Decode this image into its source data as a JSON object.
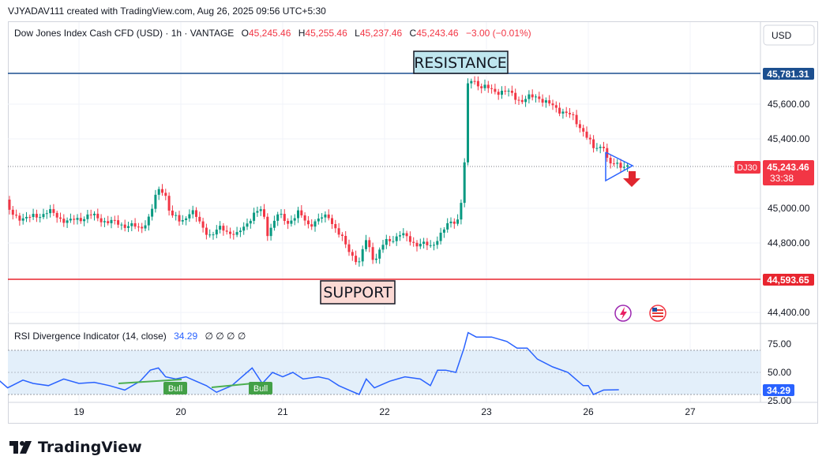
{
  "header": {
    "author_line": "VJYADAV111 created with TradingView.com, Aug 26, 2025 09:56 UTC+5:30"
  },
  "symbol_bar": {
    "name": "Dow Jones Index Cash CFD (USD) · 1h · VANTAGE",
    "o_label": "O",
    "o_value": "45,245.46",
    "h_label": "H",
    "h_value": "45,255.46",
    "l_label": "L",
    "l_value": "45,237.46",
    "c_label": "C",
    "c_value": "45,243.46",
    "change": "−3.00 (−0.01%)"
  },
  "currency_button": "USD",
  "annotations": {
    "resistance": "RESISTANCE",
    "support": "SUPPORT"
  },
  "price_tags": {
    "resistance": "45,781.31",
    "support": "44,593.65",
    "symbol": "DJ30",
    "last_price": "45,243.46",
    "countdown": "33:38"
  },
  "rsi": {
    "title": "RSI Divergence Indicator (14, close)",
    "value": "34.29",
    "extras": "∅ ∅ ∅ ∅",
    "bull_label": "Bull",
    "axis_ticks": [
      "75.00",
      "50.00",
      "25.00"
    ],
    "value_tag": "34.29"
  },
  "logo_text": "TradingView",
  "colors": {
    "up": "#089981",
    "down": "#f23645",
    "resistance": "#1c4f8f",
    "support": "#e8252f",
    "rsi_line": "#2962ff",
    "rsi_band": "#e3effa",
    "bull": "#4caf50",
    "label_green": "#43a047"
  },
  "chart_data": {
    "type": "candlestick",
    "title": "Dow Jones Index Cash CFD (USD) · 1h · VANTAGE",
    "x_ticks": [
      "19",
      "20",
      "21",
      "22",
      "23",
      "26",
      "27"
    ],
    "y_ticks": [
      "45,600.00",
      "45,400.00",
      "45,000.00",
      "44,800.00",
      "44,400.00"
    ],
    "y_range": [
      44320,
      45880
    ],
    "resistance": 45781.31,
    "support": 44593.65,
    "last_price": 45243.46,
    "close_path": [
      [
        18.2,
        45050
      ],
      [
        18.35,
        44960
      ],
      [
        18.5,
        44940
      ],
      [
        18.7,
        44980
      ],
      [
        18.9,
        44920
      ],
      [
        19.1,
        44960
      ],
      [
        19.3,
        44920
      ],
      [
        19.5,
        44900
      ],
      [
        19.6,
        44880
      ],
      [
        19.7,
        44960
      ],
      [
        19.75,
        45060
      ],
      [
        19.8,
        45120
      ],
      [
        19.85,
        45080
      ],
      [
        19.9,
        44960
      ],
      [
        20.0,
        44920
      ],
      [
        20.1,
        44990
      ],
      [
        20.2,
        44900
      ],
      [
        20.3,
        44840
      ],
      [
        20.4,
        44890
      ],
      [
        20.55,
        44840
      ],
      [
        20.7,
        44960
      ],
      [
        20.8,
        44990
      ],
      [
        20.85,
        44860
      ],
      [
        20.95,
        44960
      ],
      [
        21.05,
        44920
      ],
      [
        21.15,
        44970
      ],
      [
        21.25,
        44910
      ],
      [
        21.35,
        44930
      ],
      [
        21.45,
        44960
      ],
      [
        21.55,
        44850
      ],
      [
        21.65,
        44760
      ],
      [
        21.75,
        44680
      ],
      [
        21.82,
        44820
      ],
      [
        21.9,
        44700
      ],
      [
        22.0,
        44800
      ],
      [
        22.15,
        44850
      ],
      [
        22.3,
        44800
      ],
      [
        22.45,
        44780
      ],
      [
        22.55,
        44850
      ],
      [
        22.65,
        44920
      ],
      [
        22.72,
        44940
      ],
      [
        22.78,
        45130
      ],
      [
        22.8,
        45680
      ],
      [
        22.86,
        45750
      ],
      [
        22.95,
        45700
      ],
      [
        23.05,
        45680
      ],
      [
        23.2,
        45670
      ],
      [
        23.35,
        45620
      ],
      [
        23.5,
        45650
      ],
      [
        23.6,
        45600
      ],
      [
        23.75,
        45560
      ],
      [
        23.85,
        45520
      ],
      [
        23.95,
        45450
      ],
      [
        26.05,
        45340
      ],
      [
        26.15,
        45370
      ],
      [
        26.2,
        45245
      ],
      [
        26.3,
        45255
      ],
      [
        26.4,
        45243
      ]
    ],
    "rsi": {
      "y_range": [
        25,
        100
      ],
      "overbought": 70,
      "oversold": 30,
      "series": [
        [
          18.2,
          44
        ],
        [
          18.3,
          36
        ],
        [
          18.45,
          43
        ],
        [
          18.55,
          40
        ],
        [
          18.7,
          38
        ],
        [
          18.85,
          44
        ],
        [
          19.0,
          40
        ],
        [
          19.15,
          41
        ],
        [
          19.3,
          38
        ],
        [
          19.45,
          34
        ],
        [
          19.6,
          42
        ],
        [
          19.7,
          52
        ],
        [
          19.78,
          54
        ],
        [
          19.85,
          46
        ],
        [
          19.95,
          44
        ],
        [
          20.05,
          46
        ],
        [
          20.15,
          42
        ],
        [
          20.25,
          38
        ],
        [
          20.35,
          32
        ],
        [
          20.5,
          38
        ],
        [
          20.6,
          46
        ],
        [
          20.7,
          54
        ],
        [
          20.8,
          40
        ],
        [
          20.9,
          50
        ],
        [
          21.0,
          46
        ],
        [
          21.1,
          50
        ],
        [
          21.2,
          44
        ],
        [
          21.35,
          46
        ],
        [
          21.45,
          44
        ],
        [
          21.55,
          38
        ],
        [
          21.65,
          34
        ],
        [
          21.75,
          30
        ],
        [
          21.82,
          44
        ],
        [
          21.9,
          36
        ],
        [
          22.05,
          42
        ],
        [
          22.2,
          46
        ],
        [
          22.35,
          44
        ],
        [
          22.45,
          38
        ],
        [
          22.52,
          52
        ],
        [
          22.6,
          52
        ],
        [
          22.7,
          50
        ],
        [
          22.78,
          72
        ],
        [
          22.82,
          86
        ],
        [
          22.9,
          82
        ],
        [
          23.05,
          82
        ],
        [
          23.2,
          78
        ],
        [
          23.3,
          72
        ],
        [
          23.4,
          72
        ],
        [
          23.5,
          62
        ],
        [
          23.65,
          55
        ],
        [
          23.8,
          50
        ],
        [
          23.95,
          38
        ],
        [
          26.0,
          38
        ],
        [
          26.05,
          30
        ],
        [
          26.15,
          34
        ],
        [
          26.3,
          34.29
        ]
      ],
      "divergences": [
        {
          "label": "Bull",
          "from": [
            19.45,
            34
          ],
          "to": [
            20.05,
            46
          ]
        },
        {
          "label": "Bull",
          "from": [
            20.35,
            32
          ],
          "to": [
            20.8,
            40
          ]
        }
      ]
    }
  }
}
